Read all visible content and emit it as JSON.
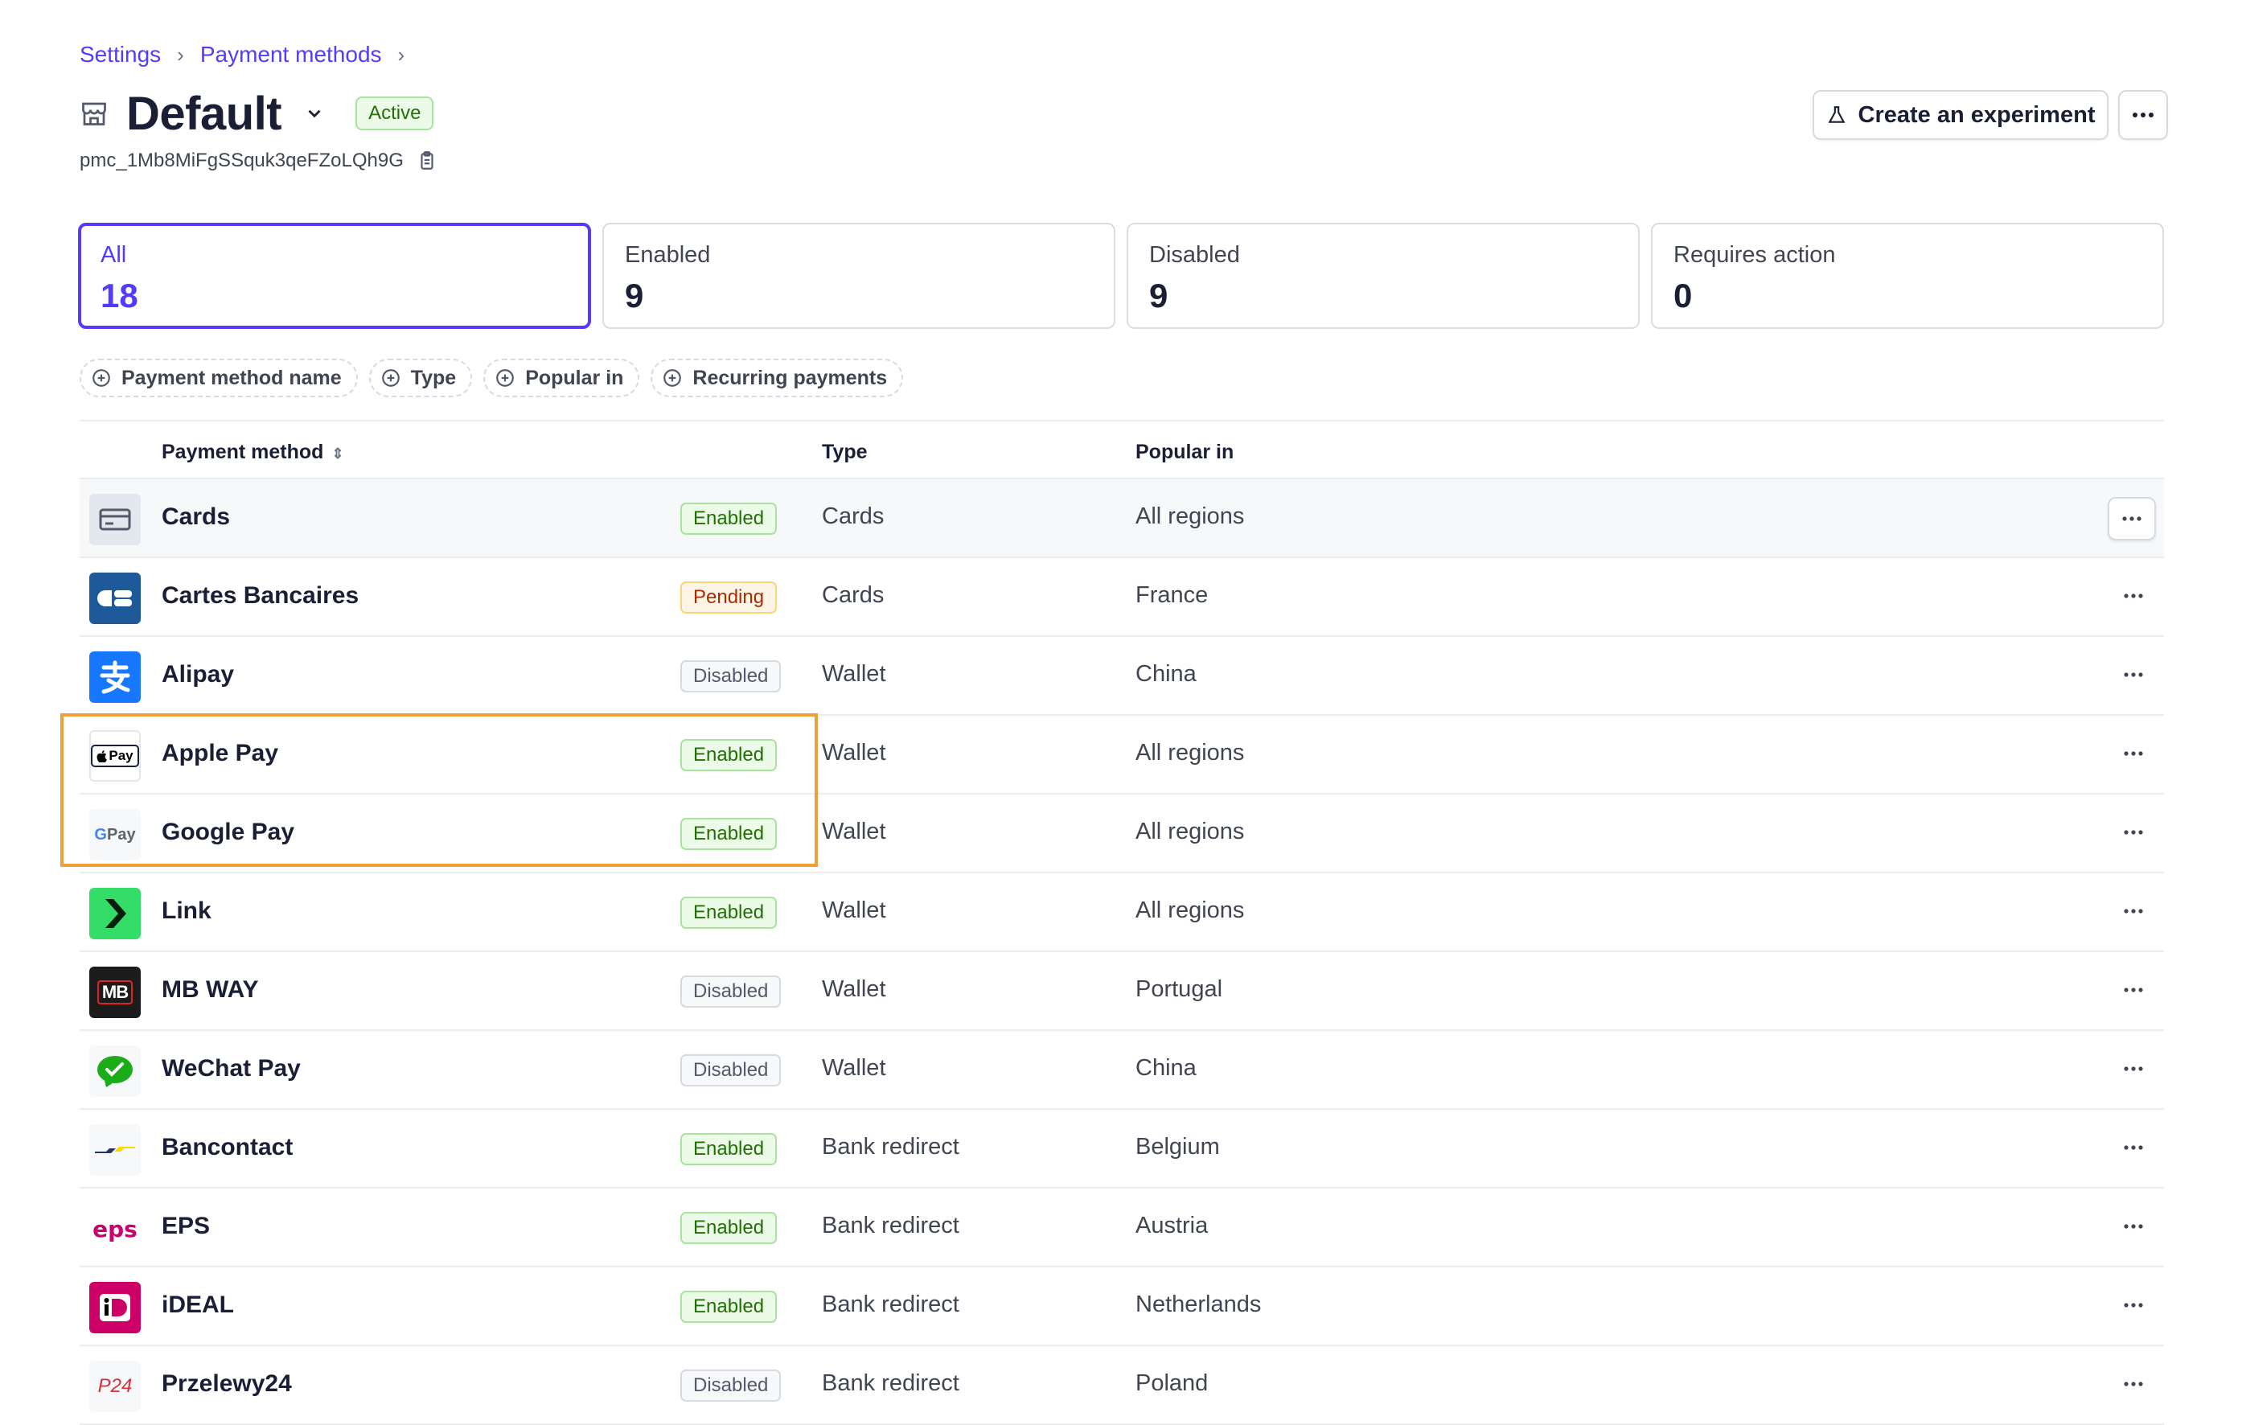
{
  "breadcrumb": [
    "Settings",
    "Payment methods"
  ],
  "header": {
    "title": "Default",
    "status": "Active",
    "config_id": "pmc_1Mb8MiFgSSquk3qeFZoLQh9G",
    "experiment_button": "Create an experiment"
  },
  "stats": [
    {
      "label": "All",
      "value": "18"
    },
    {
      "label": "Enabled",
      "value": "9"
    },
    {
      "label": "Disabled",
      "value": "9"
    },
    {
      "label": "Requires action",
      "value": "0"
    }
  ],
  "filters": [
    "Payment method name",
    "Type",
    "Popular in",
    "Recurring payments"
  ],
  "table": {
    "columns": {
      "method": "Payment method",
      "type": "Type",
      "popular": "Popular in"
    },
    "rows": [
      {
        "name": "Cards",
        "status": "Enabled",
        "type": "Cards",
        "popular": "All regions",
        "icon": "card-icon"
      },
      {
        "name": "Cartes Bancaires",
        "status": "Pending",
        "type": "Cards",
        "popular": "France",
        "icon": "cartes-bancaires-logo"
      },
      {
        "name": "Alipay",
        "status": "Disabled",
        "type": "Wallet",
        "popular": "China",
        "icon": "alipay-logo"
      },
      {
        "name": "Apple Pay",
        "status": "Enabled",
        "type": "Wallet",
        "popular": "All regions",
        "icon": "apple-pay-logo",
        "logo_text": "Pay"
      },
      {
        "name": "Google Pay",
        "status": "Enabled",
        "type": "Wallet",
        "popular": "All regions",
        "icon": "google-pay-logo",
        "logo_text": "Pay"
      },
      {
        "name": "Link",
        "status": "Enabled",
        "type": "Wallet",
        "popular": "All regions",
        "icon": "link-logo"
      },
      {
        "name": "MB WAY",
        "status": "Disabled",
        "type": "Wallet",
        "popular": "Portugal",
        "icon": "mbway-logo",
        "logo_text": "MB"
      },
      {
        "name": "WeChat Pay",
        "status": "Disabled",
        "type": "Wallet",
        "popular": "China",
        "icon": "wechat-pay-logo"
      },
      {
        "name": "Bancontact",
        "status": "Enabled",
        "type": "Bank redirect",
        "popular": "Belgium",
        "icon": "bancontact-logo"
      },
      {
        "name": "EPS",
        "status": "Enabled",
        "type": "Bank redirect",
        "popular": "Austria",
        "icon": "eps-logo",
        "logo_text": "eps"
      },
      {
        "name": "iDEAL",
        "status": "Enabled",
        "type": "Bank redirect",
        "popular": "Netherlands",
        "icon": "ideal-logo"
      },
      {
        "name": "Przelewy24",
        "status": "Disabled",
        "type": "Bank redirect",
        "popular": "Poland",
        "icon": "przelewy24-logo",
        "logo_text": "P24"
      }
    ]
  },
  "colors": {
    "accent": "#533afd",
    "highlight": "#f09e3a"
  }
}
